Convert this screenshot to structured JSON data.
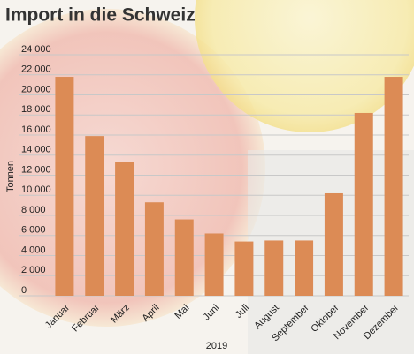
{
  "chart_data": {
    "type": "bar",
    "title": "Import in die Schweiz",
    "y_label": "Tonnen",
    "x_label": "2019",
    "categories": [
      "Januar",
      "Februar",
      "März",
      "April",
      "Mai",
      "Juni",
      "Juli",
      "August",
      "September",
      "Oktober",
      "November",
      "Dezember"
    ],
    "values": [
      21800,
      15900,
      13300,
      9300,
      7600,
      6200,
      5400,
      5500,
      5500,
      10200,
      18200,
      21800
    ],
    "color": "#dc8b55",
    "ylim": [
      0,
      24000
    ],
    "yticks": [
      0,
      {
        "value": 2000,
        "label": "2 000"
      },
      {
        "value": 4000,
        "label": "4 000"
      },
      {
        "value": 6000,
        "label": "6 000"
      },
      {
        "value": 8000,
        "label": "8 000"
      },
      {
        "value": 10000,
        "label": "10 000"
      },
      {
        "value": 12000,
        "label": "12 000"
      },
      {
        "value": 14000,
        "label": "14 000"
      },
      {
        "value": 16000,
        "label": "16 000"
      },
      {
        "value": 18000,
        "label": "18 000"
      },
      {
        "value": 20000,
        "label": "20 000"
      },
      {
        "value": 22000,
        "label": "22 000"
      },
      {
        "value": 24000,
        "label": "24 000"
      }
    ],
    "grid": true
  }
}
